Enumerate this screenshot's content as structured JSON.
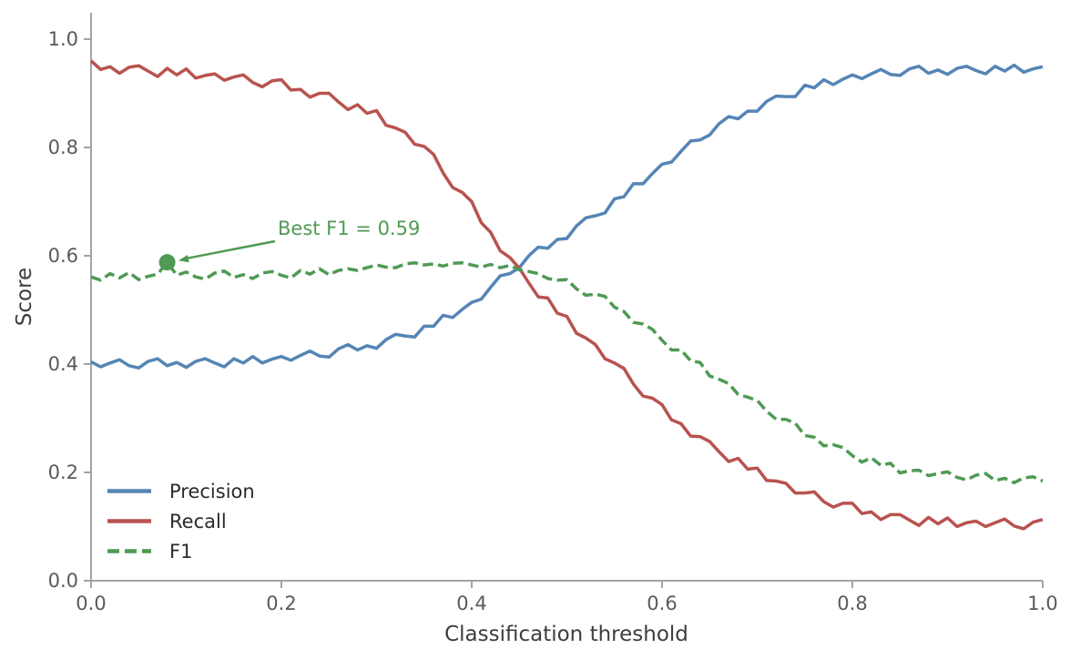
{
  "chart_data": {
    "type": "line",
    "title": "",
    "xlabel": "Classification threshold",
    "ylabel": "Score",
    "xlim": [
      0,
      1
    ],
    "ylim": [
      0,
      1.05
    ],
    "grid": false,
    "legend_position": "lower left",
    "xticks": [
      0,
      0.2,
      0.4,
      0.6,
      0.8,
      1.0
    ],
    "yticks": [
      0,
      0.2,
      0.4,
      0.6,
      0.8,
      1.0
    ],
    "xtick_labels": [
      "0.0",
      "0.2",
      "0.4",
      "0.6",
      "0.8",
      "1.0"
    ],
    "ytick_labels": [
      "0.0",
      "0.2",
      "0.4",
      "0.6",
      "0.8",
      "1.0"
    ],
    "spine_color": "#a3a3a3",
    "x": [
      0,
      0.01,
      0.02,
      0.03,
      0.04,
      0.05,
      0.06,
      0.07,
      0.08,
      0.09,
      0.1,
      0.11,
      0.12,
      0.13,
      0.14,
      0.15,
      0.16,
      0.17,
      0.18,
      0.19,
      0.2,
      0.21,
      0.22,
      0.23,
      0.24,
      0.25,
      0.26,
      0.27,
      0.28,
      0.29,
      0.3,
      0.31,
      0.32,
      0.33,
      0.34,
      0.35,
      0.36,
      0.37,
      0.38,
      0.39,
      0.4,
      0.41,
      0.42,
      0.43,
      0.44,
      0.45,
      0.46,
      0.47,
      0.48,
      0.49,
      0.5,
      0.51,
      0.52,
      0.53,
      0.54,
      0.55,
      0.56,
      0.57,
      0.58,
      0.59,
      0.6,
      0.61,
      0.62,
      0.63,
      0.64,
      0.65,
      0.66,
      0.67,
      0.68,
      0.69,
      0.7,
      0.71,
      0.72,
      0.73,
      0.74,
      0.75,
      0.76,
      0.77,
      0.78,
      0.79,
      0.8,
      0.81,
      0.82,
      0.83,
      0.84,
      0.85,
      0.86,
      0.87,
      0.88,
      0.89,
      0.9,
      0.91,
      0.92,
      0.93,
      0.94,
      0.95,
      0.96,
      0.97,
      0.98,
      0.99,
      1.0
    ],
    "series": [
      {
        "name": "Precision",
        "color": "#5585b5",
        "style": "solid",
        "values": [
          0.404,
          0.395,
          0.402,
          0.408,
          0.397,
          0.393,
          0.405,
          0.41,
          0.397,
          0.403,
          0.394,
          0.405,
          0.41,
          0.402,
          0.395,
          0.41,
          0.402,
          0.414,
          0.402,
          0.409,
          0.414,
          0.407,
          0.416,
          0.424,
          0.415,
          0.413,
          0.428,
          0.436,
          0.426,
          0.434,
          0.429,
          0.445,
          0.455,
          0.452,
          0.45,
          0.47,
          0.47,
          0.49,
          0.486,
          0.501,
          0.514,
          0.52,
          0.542,
          0.563,
          0.567,
          0.578,
          0.6,
          0.616,
          0.614,
          0.63,
          0.632,
          0.655,
          0.67,
          0.674,
          0.679,
          0.705,
          0.709,
          0.733,
          0.733,
          0.752,
          0.769,
          0.773,
          0.793,
          0.812,
          0.814,
          0.823,
          0.844,
          0.857,
          0.853,
          0.867,
          0.867,
          0.885,
          0.895,
          0.894,
          0.894,
          0.915,
          0.91,
          0.925,
          0.916,
          0.926,
          0.934,
          0.927,
          0.936,
          0.944,
          0.935,
          0.933,
          0.945,
          0.95,
          0.937,
          0.943,
          0.935,
          0.946,
          0.95,
          0.942,
          0.936,
          0.95,
          0.941,
          0.952,
          0.939,
          0.945,
          0.949
        ]
      },
      {
        "name": "Recall",
        "color": "#b8534f",
        "style": "solid",
        "values": [
          0.96,
          0.944,
          0.949,
          0.937,
          0.948,
          0.951,
          0.941,
          0.931,
          0.946,
          0.934,
          0.945,
          0.928,
          0.933,
          0.936,
          0.924,
          0.93,
          0.934,
          0.92,
          0.912,
          0.923,
          0.925,
          0.906,
          0.907,
          0.893,
          0.9,
          0.9,
          0.884,
          0.87,
          0.879,
          0.863,
          0.868,
          0.841,
          0.836,
          0.828,
          0.806,
          0.802,
          0.787,
          0.753,
          0.726,
          0.717,
          0.7,
          0.661,
          0.643,
          0.609,
          0.597,
          0.577,
          0.55,
          0.524,
          0.522,
          0.494,
          0.488,
          0.457,
          0.448,
          0.436,
          0.41,
          0.402,
          0.392,
          0.363,
          0.341,
          0.337,
          0.325,
          0.297,
          0.29,
          0.267,
          0.266,
          0.257,
          0.238,
          0.22,
          0.226,
          0.206,
          0.208,
          0.185,
          0.184,
          0.18,
          0.162,
          0.162,
          0.164,
          0.146,
          0.136,
          0.143,
          0.143,
          0.124,
          0.127,
          0.113,
          0.122,
          0.122,
          0.112,
          0.102,
          0.117,
          0.105,
          0.116,
          0.1,
          0.107,
          0.11,
          0.1,
          0.107,
          0.114,
          0.101,
          0.096,
          0.108,
          0.113
        ]
      },
      {
        "name": "F1",
        "color": "#4f9a54",
        "style": "dashed",
        "values": [
          0.561,
          0.555,
          0.567,
          0.559,
          0.569,
          0.556,
          0.562,
          0.566,
          0.588,
          0.564,
          0.57,
          0.561,
          0.557,
          0.568,
          0.572,
          0.56,
          0.565,
          0.558,
          0.568,
          0.571,
          0.564,
          0.559,
          0.573,
          0.566,
          0.576,
          0.565,
          0.573,
          0.576,
          0.573,
          0.578,
          0.583,
          0.579,
          0.578,
          0.585,
          0.587,
          0.583,
          0.585,
          0.581,
          0.586,
          0.587,
          0.583,
          0.579,
          0.584,
          0.578,
          0.582,
          0.574,
          0.571,
          0.567,
          0.558,
          0.555,
          0.556,
          0.539,
          0.527,
          0.529,
          0.525,
          0.505,
          0.497,
          0.477,
          0.474,
          0.464,
          0.444,
          0.426,
          0.426,
          0.406,
          0.403,
          0.378,
          0.372,
          0.364,
          0.344,
          0.339,
          0.333,
          0.313,
          0.298,
          0.298,
          0.291,
          0.268,
          0.265,
          0.249,
          0.251,
          0.246,
          0.231,
          0.219,
          0.227,
          0.213,
          0.217,
          0.199,
          0.203,
          0.204,
          0.194,
          0.198,
          0.201,
          0.191,
          0.186,
          0.195,
          0.198,
          0.185,
          0.189,
          0.181,
          0.19,
          0.192,
          0.184
        ]
      }
    ],
    "annotation": {
      "label": "Best F1 = 0.59",
      "x": 0.08,
      "y": 0.588,
      "color": "#4f9a54"
    }
  }
}
